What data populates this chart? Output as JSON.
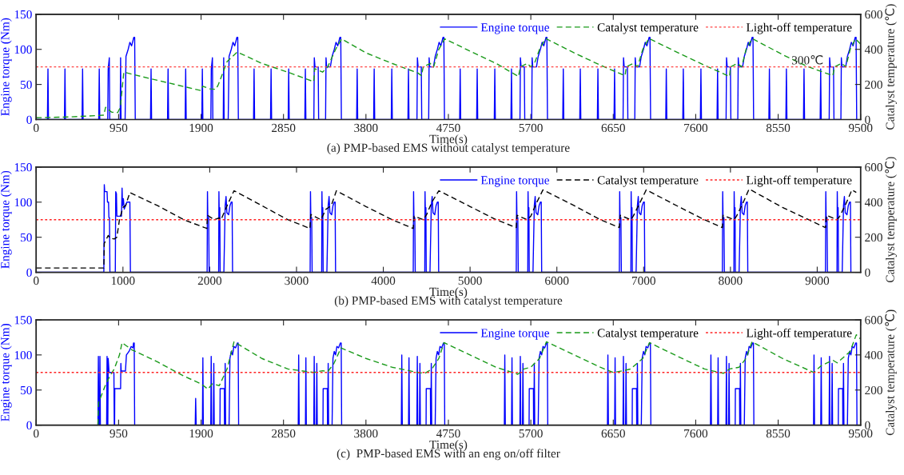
{
  "chart_data": [
    {
      "type": "line",
      "title": "(a) PMP-based EMS without catalyst temperature",
      "xlabel": "Time(s)",
      "ylabel": "Engine torque (Nm)",
      "y2label": "Catalyst temperature (℃)",
      "xlim": [
        0,
        9500
      ],
      "xticks": [
        0,
        950,
        1900,
        2850,
        3800,
        4750,
        5700,
        6650,
        7600,
        8550,
        9500
      ],
      "ylim": [
        0,
        150
      ],
      "yticks": [
        0,
        50,
        100,
        150
      ],
      "y2lim": [
        0,
        600
      ],
      "y2ticks": [
        0,
        200,
        400,
        600
      ],
      "grid": false,
      "legend": "top right",
      "annotations": [
        "300℃"
      ],
      "ref_lines": [
        {
          "axis": "y2",
          "value": 300,
          "label": "Light-off temperature",
          "color": "#ff4444",
          "line_style": "dotted"
        }
      ],
      "series": [
        {
          "name": "Engine torque",
          "color": "#0000ff",
          "line_style": "solid",
          "x": [
            0,
            130,
            136,
            142,
            326,
            332,
            338,
            529,
            535,
            541,
            721,
            727,
            733,
            825,
            830,
            843,
            848,
            968,
            973,
            978,
            1025,
            1035,
            1060,
            1080,
            1100,
            1125,
            1135,
            1142,
            1318,
            1324,
            1330,
            1514,
            1520,
            1526,
            1717,
            1723,
            1729,
            1909,
            1915,
            1921,
            2013,
            2018,
            2031,
            2036,
            2156,
            2161,
            2166,
            2213,
            2223,
            2248,
            2268,
            2288,
            2313,
            2323,
            2330,
            2505,
            2511,
            2517,
            2701,
            2707,
            2713,
            2904,
            2910,
            2916,
            3096,
            3102,
            3108,
            3200,
            3205,
            3213,
            3250,
            3255,
            3335,
            3340,
            3347,
            3390,
            3410,
            3435,
            3455,
            3475,
            3500,
            3510,
            3517,
            3693,
            3699,
            3705,
            3889,
            3895,
            3901,
            4092,
            4098,
            4104,
            4284,
            4290,
            4296,
            4388,
            4393,
            4401,
            4438,
            4443,
            4523,
            4528,
            4535,
            4578,
            4598,
            4623,
            4643,
            4663,
            4688,
            4698,
            4705,
            4880,
            4886,
            4892,
            5076,
            5082,
            5088,
            5279,
            5285,
            5291,
            5471,
            5477,
            5483,
            5575,
            5580,
            5588,
            5625,
            5630,
            5710,
            5715,
            5722,
            5765,
            5785,
            5810,
            5830,
            5850,
            5875,
            5885,
            5892,
            6068,
            6074,
            6080,
            6264,
            6270,
            6276,
            6467,
            6473,
            6479,
            6659,
            6665,
            6671,
            6763,
            6768,
            6776,
            6813,
            6818,
            6898,
            6903,
            6910,
            6953,
            6973,
            6998,
            7018,
            7038,
            7063,
            7073,
            7080,
            7255,
            7261,
            7267,
            7451,
            7457,
            7463,
            7654,
            7660,
            7666,
            7846,
            7852,
            7858,
            7950,
            7955,
            7963,
            8000,
            8005,
            8085,
            8090,
            8097,
            8140,
            8160,
            8185,
            8205,
            8225,
            8250,
            8260,
            8267,
            8443,
            8449,
            8455,
            8639,
            8645,
            8651,
            8842,
            8848,
            8854,
            9034,
            9040,
            9046,
            9138,
            9143,
            9151,
            9188,
            9193,
            9273,
            9278,
            9285,
            9328,
            9348,
            9373,
            9393,
            9413,
            9438,
            9448,
            9455
          ],
          "values": [
            0,
            0,
            72,
            0,
            0,
            72,
            0,
            0,
            72,
            0,
            0,
            72,
            0,
            0,
            72,
            88,
            0,
            0,
            88,
            0,
            0,
            90,
            100,
            110,
            105,
            117,
            117,
            0,
            0,
            72,
            0,
            0,
            72,
            0,
            0,
            72,
            0,
            0,
            72,
            0,
            0,
            72,
            88,
            0,
            0,
            88,
            0,
            0,
            90,
            100,
            110,
            105,
            117,
            117,
            0,
            0,
            72,
            0,
            0,
            72,
            0,
            0,
            72,
            0,
            0,
            72,
            0,
            0,
            88,
            75,
            75,
            0,
            0,
            88,
            75,
            75,
            90,
            100,
            110,
            105,
            117,
            117,
            0,
            0,
            72,
            0,
            0,
            72,
            0,
            0,
            72,
            0,
            0,
            72,
            0,
            0,
            88,
            75,
            75,
            0,
            0,
            88,
            75,
            75,
            90,
            100,
            110,
            105,
            117,
            117,
            0,
            0,
            72,
            0,
            0,
            72,
            0,
            0,
            72,
            0,
            0,
            72,
            0,
            0,
            88,
            75,
            75,
            0,
            0,
            88,
            75,
            75,
            90,
            100,
            110,
            105,
            117,
            117,
            0,
            0,
            72,
            0,
            0,
            72,
            0,
            0,
            72,
            0,
            0,
            72,
            0,
            0,
            88,
            75,
            75,
            0,
            0,
            88,
            75,
            75,
            90,
            100,
            110,
            105,
            117,
            117,
            0,
            0,
            72,
            0,
            0,
            72,
            0,
            0,
            72,
            0,
            0,
            72,
            0,
            0,
            88,
            75,
            75,
            0,
            0,
            88,
            75,
            75,
            90,
            100,
            110,
            105,
            117,
            117,
            0,
            0,
            72,
            0,
            0,
            72,
            0,
            0,
            72,
            0,
            0,
            72,
            0,
            0,
            88,
            75,
            75,
            0,
            0,
            88,
            75,
            75,
            90,
            100,
            110,
            105,
            117,
            117,
            0
          ]
        },
        {
          "name": "Catalyst temperature",
          "color": "#1a9a1a",
          "line_style": "dashed",
          "axis": "y2",
          "x": [
            0,
            400,
            780,
            800,
            870,
            940,
            970,
            1010,
            1300,
            1600,
            1900,
            1920,
            2000,
            2070,
            2100,
            2200,
            2317,
            2600,
            2900,
            3197,
            3210,
            3300,
            3360,
            3450,
            3520,
            3800,
            4100,
            4400,
            4440,
            4460,
            4540,
            4580,
            4640,
            4708,
            5000,
            5300,
            5557,
            5580,
            5660,
            5700,
            5750,
            5800,
            5870,
            6200,
            6500,
            6786,
            6800,
            6880,
            6930,
            6990,
            7060,
            7400,
            7700,
            7990,
            8000,
            8080,
            8130,
            8180,
            8250,
            8600,
            8900,
            9180,
            9200,
            9280,
            9330,
            9380,
            9440,
            9500
          ],
          "values": [
            10,
            15,
            25,
            70,
            42,
            40,
            70,
            270,
            235,
            200,
            165,
            190,
            175,
            172,
            200,
            330,
            385,
            320,
            270,
            216,
            290,
            270,
            300,
            400,
            459,
            380,
            320,
            265,
            250,
            300,
            320,
            300,
            400,
            460,
            390,
            320,
            245,
            300,
            320,
            300,
            330,
            400,
            462,
            380,
            310,
            250,
            300,
            320,
            300,
            400,
            462,
            380,
            310,
            245,
            300,
            320,
            300,
            400,
            462,
            370,
            300,
            250,
            300,
            320,
            300,
            400,
            460,
            430
          ]
        }
      ]
    },
    {
      "type": "line",
      "title": "(b) PMP-based EMS with catalyst temperature",
      "xlabel": "Time(s)",
      "ylabel": "Engine torque (Nm)",
      "y2label": "Catalyst temperature (℃)",
      "xlim": [
        0,
        9500
      ],
      "xticks": [
        0,
        1000,
        2000,
        3000,
        4000,
        5000,
        6000,
        7000,
        8000,
        9000
      ],
      "ylim": [
        0,
        150
      ],
      "yticks": [
        0,
        50,
        100,
        150
      ],
      "y2lim": [
        0,
        600
      ],
      "y2ticks": [
        0,
        200,
        400,
        600
      ],
      "grid": false,
      "legend": "top right",
      "ref_lines": [
        {
          "axis": "y2",
          "value": 300,
          "label": "Light-off temperature",
          "color": "#ff2222",
          "line_style": "dotted"
        }
      ],
      "series": [
        {
          "name": "Engine torque",
          "color": "#0000ff",
          "line_style": "solid",
          "x": [
            0,
            780,
            785,
            790,
            817,
            822,
            834,
            838,
            845,
            850,
            912,
            917,
            925,
            930,
            983,
            990,
            995,
            1005,
            1015,
            1030,
            1045,
            1080,
            1086,
            1970,
            1974,
            1978,
            1988,
            1993,
            2103,
            2106,
            2110,
            2116,
            2120,
            2163,
            2178,
            2188,
            2198,
            2218,
            2233,
            2248,
            2258,
            2263,
            3157,
            3161,
            3165,
            3175,
            3180,
            3290,
            3293,
            3297,
            3303,
            3307,
            3350,
            3365,
            3375,
            3385,
            3405,
            3420,
            3435,
            3445,
            3450,
            4345,
            4349,
            4353,
            4363,
            4368,
            4478,
            4481,
            4485,
            4491,
            4495,
            4538,
            4553,
            4563,
            4573,
            4593,
            4608,
            4623,
            4633,
            4638,
            5532,
            5536,
            5540,
            5550,
            5555,
            5665,
            5668,
            5672,
            5678,
            5682,
            5725,
            5740,
            5750,
            5760,
            5780,
            5795,
            5810,
            5820,
            5825,
            6720,
            6724,
            6728,
            6738,
            6743,
            6853,
            6856,
            6860,
            6866,
            6870,
            6913,
            6928,
            6938,
            6948,
            6968,
            6983,
            6998,
            7008,
            7013,
            7907,
            7911,
            7915,
            7925,
            7930,
            8040,
            8043,
            8047,
            8053,
            8057,
            8100,
            8115,
            8125,
            8135,
            8155,
            8170,
            8185,
            8195,
            8200,
            9095,
            9099,
            9103,
            9113,
            9118,
            9228,
            9231,
            9235,
            9241,
            9245,
            9288,
            9303,
            9313,
            9323,
            9343,
            9358,
            9373,
            9383,
            9388
          ],
          "values": [
            0,
            0,
            125,
            115,
            115,
            100,
            100,
            78,
            78,
            0,
            0,
            115,
            112,
            80,
            80,
            120,
            95,
            105,
            90,
            95,
            100,
            100,
            0,
            0,
            115,
            78,
            78,
            0,
            0,
            115,
            80,
            92,
            0,
            0,
            95,
            108,
            85,
            82,
            95,
            100,
            100,
            0,
            0,
            115,
            78,
            78,
            0,
            0,
            115,
            80,
            92,
            0,
            0,
            95,
            108,
            85,
            82,
            95,
            100,
            100,
            0,
            0,
            115,
            78,
            78,
            0,
            0,
            115,
            80,
            92,
            0,
            0,
            95,
            108,
            85,
            82,
            95,
            100,
            100,
            0,
            0,
            115,
            78,
            78,
            0,
            0,
            115,
            80,
            92,
            0,
            0,
            95,
            108,
            85,
            82,
            95,
            100,
            100,
            0,
            0,
            115,
            78,
            78,
            0,
            0,
            115,
            80,
            92,
            0,
            0,
            95,
            108,
            85,
            82,
            95,
            100,
            100,
            0,
            0,
            115,
            78,
            78,
            0,
            0,
            115,
            80,
            92,
            0,
            0,
            95,
            108,
            85,
            82,
            95,
            100,
            100,
            0,
            0,
            115,
            78,
            78,
            0,
            0,
            115,
            80,
            92,
            0,
            0,
            95,
            108,
            85,
            82,
            95,
            100,
            100,
            0
          ]
        },
        {
          "name": "Catalyst temperature",
          "color": "#000000",
          "line_style": "dashed",
          "axis": "y2",
          "x": [
            0,
            780,
            785,
            830,
            850,
            900,
            930,
            960,
            1000,
            1030,
            1080,
            1400,
            1700,
            1967,
            1975,
            2050,
            2110,
            2130,
            2200,
            2280,
            2600,
            2900,
            3155,
            3165,
            3280,
            3300,
            3340,
            3400,
            3460,
            3800,
            4100,
            4345,
            4355,
            4460,
            4500,
            4560,
            4640,
            5000,
            5300,
            5532,
            5540,
            5660,
            5700,
            5760,
            5840,
            6200,
            6500,
            6720,
            6730,
            6850,
            6880,
            6950,
            7030,
            7400,
            7700,
            7907,
            7915,
            8040,
            8070,
            8140,
            8215,
            8600,
            8900,
            9095,
            9105,
            9228,
            9260,
            9330,
            9400,
            9450
          ],
          "values": [
            25,
            25,
            165,
            210,
            195,
            190,
            200,
            300,
            370,
            380,
            455,
            380,
            300,
            250,
            325,
            300,
            310,
            300,
            380,
            465,
            380,
            300,
            250,
            330,
            300,
            320,
            360,
            380,
            465,
            375,
            300,
            250,
            320,
            300,
            330,
            400,
            465,
            375,
            300,
            255,
            325,
            300,
            320,
            390,
            470,
            380,
            300,
            255,
            325,
            300,
            320,
            390,
            470,
            375,
            300,
            255,
            325,
            300,
            320,
            390,
            475,
            370,
            300,
            255,
            325,
            300,
            320,
            390,
            470,
            455
          ]
        }
      ]
    },
    {
      "type": "line",
      "title": "(c)  PMP-based EMS with an eng on/off filter",
      "xlabel": "Time(s)",
      "ylabel": "Engine torque (Nm)",
      "y2label": "Catalyst temperature (℃)",
      "xlim": [
        0,
        9500
      ],
      "xticks": [
        0,
        950,
        1900,
        2850,
        3800,
        4750,
        5700,
        6650,
        7600,
        8550,
        9500
      ],
      "ylim": [
        0,
        150
      ],
      "yticks": [
        0,
        50,
        100,
        150
      ],
      "y2lim": [
        0,
        600
      ],
      "y2ticks": [
        0,
        200,
        400,
        600
      ],
      "grid": false,
      "legend": "top right",
      "ref_lines": [
        {
          "axis": "y2",
          "value": 300,
          "label": "Light-off temperature",
          "color": "#ff2222",
          "line_style": "dotted"
        }
      ],
      "series": [
        {
          "name": "Engine torque",
          "color": "#0000ff",
          "line_style": "solid",
          "x": [
            0,
            712,
            717,
            722,
            730,
            735,
            740,
            812,
            817,
            822,
            826,
            830,
            840,
            896,
            900,
            904,
            906,
            973,
            976,
            980,
            1029,
            1040,
            1070,
            1095,
            1115,
            1122,
            1130,
            1135,
            1833,
            1838,
            1844,
            1916,
            1921,
            1926,
            2012,
            2017,
            2022,
            2042,
            2047,
            2052,
            2118,
            2120,
            2168,
            2170,
            2173,
            2178,
            2183,
            2223,
            2233,
            2248,
            2263,
            2278,
            2298,
            2318,
            2328,
            2333,
            3020,
            3025,
            3031,
            3103,
            3108,
            3113,
            3199,
            3204,
            3209,
            3229,
            3234,
            3239,
            3305,
            3307,
            3355,
            3357,
            3360,
            3365,
            3370,
            3410,
            3420,
            3435,
            3450,
            3465,
            3485,
            3505,
            3515,
            3520,
            4208,
            4213,
            4219,
            4291,
            4296,
            4301,
            4387,
            4392,
            4397,
            4417,
            4422,
            4427,
            4493,
            4495,
            4543,
            4545,
            4548,
            4553,
            4558,
            4598,
            4608,
            4623,
            4638,
            4653,
            4673,
            4693,
            4703,
            4708,
            5395,
            5400,
            5406,
            5478,
            5483,
            5488,
            5574,
            5579,
            5584,
            5604,
            5609,
            5614,
            5680,
            5682,
            5730,
            5732,
            5735,
            5740,
            5745,
            5785,
            5795,
            5810,
            5825,
            5840,
            5860,
            5880,
            5890,
            5895,
            6583,
            6588,
            6594,
            6666,
            6671,
            6676,
            6762,
            6767,
            6772,
            6792,
            6797,
            6802,
            6868,
            6870,
            6918,
            6920,
            6923,
            6928,
            6933,
            6973,
            6983,
            6998,
            7013,
            7028,
            7048,
            7068,
            7078,
            7083,
            7770,
            7775,
            7781,
            7853,
            7858,
            7863,
            7949,
            7954,
            7959,
            7979,
            7984,
            7989,
            8055,
            8057,
            8105,
            8107,
            8110,
            8115,
            8120,
            8160,
            8170,
            8185,
            8200,
            8215,
            8235,
            8255,
            8265,
            8270,
            8958,
            8963,
            8969,
            9041,
            9046,
            9051,
            9137,
            9142,
            9147,
            9167,
            9172,
            9177,
            9243,
            9245,
            9293,
            9295,
            9298,
            9303,
            9308,
            9348,
            9358,
            9373,
            9388,
            9403,
            9423,
            9443,
            9453,
            9458
          ],
          "values": [
            0,
            0,
            98,
            0,
            0,
            98,
            0,
            0,
            98,
            0,
            0,
            95,
            75,
            75,
            0,
            0,
            52,
            52,
            88,
            77,
            77,
            100,
            105,
            112,
            110,
            117,
            117,
            0,
            0,
            38,
            0,
            0,
            96,
            0,
            0,
            98,
            0,
            0,
            88,
            0,
            0,
            52,
            52,
            0,
            0,
            88,
            0,
            0,
            95,
            105,
            100,
            112,
            110,
            117,
            117,
            0,
            0,
            100,
            0,
            0,
            96,
            0,
            0,
            98,
            0,
            0,
            88,
            0,
            0,
            52,
            52,
            0,
            0,
            88,
            0,
            0,
            95,
            105,
            100,
            112,
            110,
            117,
            117,
            0,
            0,
            100,
            0,
            0,
            96,
            0,
            0,
            98,
            0,
            0,
            88,
            0,
            0,
            52,
            52,
            0,
            0,
            88,
            0,
            0,
            95,
            105,
            100,
            112,
            110,
            117,
            117,
            0,
            0,
            100,
            0,
            0,
            96,
            0,
            0,
            98,
            0,
            0,
            88,
            0,
            0,
            52,
            52,
            0,
            0,
            88,
            0,
            0,
            95,
            105,
            100,
            112,
            110,
            117,
            117,
            0,
            0,
            100,
            0,
            0,
            96,
            0,
            0,
            98,
            0,
            0,
            88,
            0,
            0,
            52,
            52,
            0,
            0,
            88,
            0,
            0,
            95,
            105,
            100,
            112,
            110,
            117,
            117,
            0,
            0,
            100,
            0,
            0,
            96,
            0,
            0,
            98,
            0,
            0,
            88,
            0,
            0,
            52,
            52,
            0,
            0,
            88,
            0,
            0,
            95,
            105,
            100,
            112,
            110,
            117,
            117,
            0,
            0,
            100,
            0,
            0,
            96,
            0,
            0,
            98,
            0,
            0,
            88,
            0,
            0,
            52,
            52,
            0,
            0,
            88,
            0,
            0,
            95,
            105,
            100,
            112,
            110,
            117,
            117,
            0
          ]
        },
        {
          "name": "Catalyst temperature",
          "color": "#1a9a1a",
          "line_style": "dashed",
          "axis": "y2",
          "x": [
            0,
            712,
            720,
            800,
            850,
            900,
            960,
            990,
            1100,
            1400,
            1700,
            1900,
            1980,
            2030,
            2110,
            2200,
            2280,
            2600,
            2900,
            3200,
            3300,
            3360,
            3430,
            3513,
            3800,
            4100,
            4400,
            4480,
            4560,
            4640,
            4700,
            5000,
            5300,
            5550,
            5620,
            5700,
            5800,
            5880,
            6200,
            6500,
            6650,
            6760,
            6850,
            6990,
            7067,
            7400,
            7700,
            7918,
            7990,
            8100,
            8180,
            8249,
            8600,
            8960,
            9050,
            9180,
            9230,
            9380,
            9450,
            9500
          ],
          "values": [
            0,
            0,
            130,
            230,
            280,
            320,
            400,
            470,
            430,
            360,
            280,
            235,
            205,
            235,
            225,
            320,
            475,
            380,
            320,
            300,
            310,
            305,
            350,
            440,
            380,
            330,
            300,
            295,
            320,
            380,
            470,
            400,
            330,
            290,
            320,
            330,
            380,
            475,
            400,
            330,
            300,
            310,
            320,
            380,
            470,
            390,
            320,
            295,
            320,
            330,
            380,
            475,
            380,
            300,
            340,
            370,
            355,
            420,
            515,
            490
          ]
        }
      ]
    }
  ]
}
